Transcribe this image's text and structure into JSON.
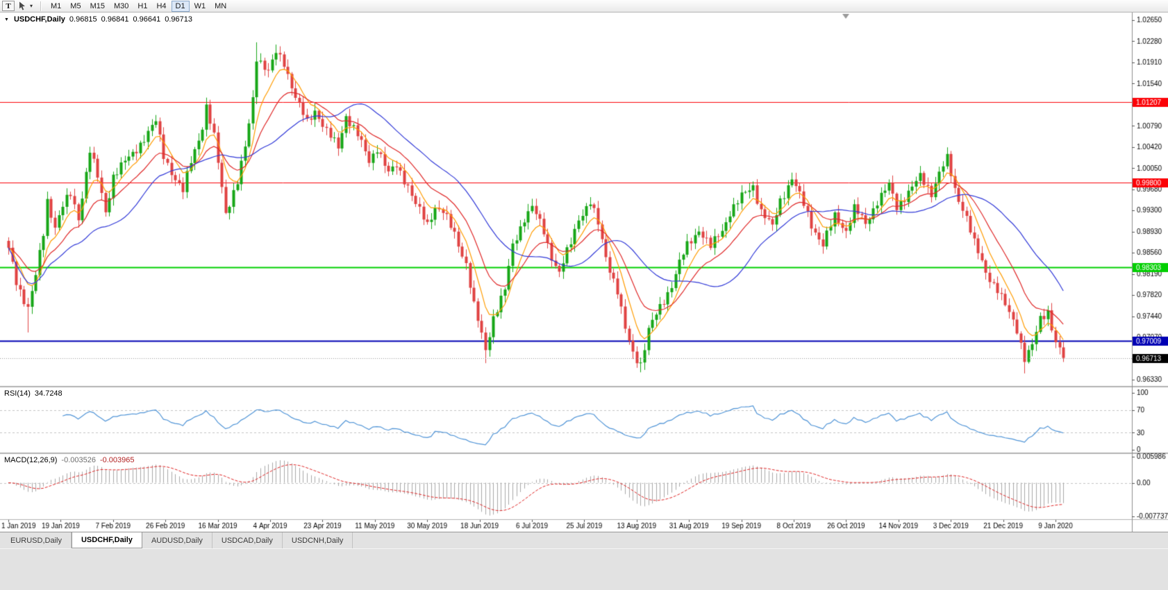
{
  "toolbar": {
    "text_tool_label": "T",
    "timeframes": [
      "M1",
      "M5",
      "M15",
      "M30",
      "H1",
      "H4",
      "D1",
      "W1",
      "MN"
    ],
    "active_timeframe": "D1"
  },
  "chart_data": {
    "type": "candlestick",
    "title_symbol": "USDCHF,Daily",
    "ohlc": {
      "open": "0.96815",
      "high": "0.96841",
      "low": "0.96641",
      "close": "0.96713"
    },
    "price_axis_labels": [
      "1.02650",
      "1.02280",
      "1.01910",
      "1.01540",
      "1.01170",
      "1.00790",
      "1.00420",
      "1.00050",
      "0.99680",
      "0.99300",
      "0.98930",
      "0.98560",
      "0.98190",
      "0.97820",
      "0.97440",
      "0.97070",
      "0.96700",
      "0.96330"
    ],
    "date_axis_labels": [
      "1 Jan 2019",
      "19 Jan 2019",
      "7 Feb 2019",
      "26 Feb 2019",
      "16 Mar 2019",
      "4 Apr 2019",
      "23 Apr 2019",
      "11 May 2019",
      "30 May 2019",
      "18 Jun 2019",
      "6 Jul 2019",
      "25 Jul 2019",
      "13 Aug 2019",
      "31 Aug 2019",
      "19 Sep 2019",
      "8 Oct 2019",
      "26 Oct 2019",
      "14 Nov 2019",
      "3 Dec 2019",
      "21 Dec 2019",
      "9 Jan 2020"
    ],
    "horizontal_levels": [
      {
        "price": 1.01207,
        "label": "1.01207",
        "color": "#fb0207",
        "line_width": 1
      },
      {
        "price": 0.998,
        "label": "0.99800",
        "color": "#fb0207",
        "line_width": 1
      },
      {
        "price": 0.98303,
        "label": "0.98303",
        "color": "#00cf00",
        "line_width": 2
      },
      {
        "price": 0.97009,
        "label": "0.97009",
        "color": "#0000b4",
        "line_width": 2
      }
    ],
    "current_price": {
      "value": 0.96713,
      "label": "0.96713",
      "tag_color": "#000000"
    },
    "candle_up_color": "#17a617",
    "candle_down_color": "#e04242",
    "moving_averages": [
      {
        "type": "ema",
        "period": 7,
        "color": "#ff9c00"
      },
      {
        "type": "ema",
        "period": 16,
        "color": "#e02828"
      },
      {
        "type": "sma",
        "period": 30,
        "color": "#3038d8"
      }
    ],
    "bars_total": 273,
    "price_anchors": [
      [
        0,
        0.9865
      ],
      [
        2,
        0.9805
      ],
      [
        5,
        0.976
      ],
      [
        7,
        0.9815
      ],
      [
        9,
        0.989
      ],
      [
        10,
        0.9948
      ],
      [
        12,
        0.9903
      ],
      [
        14,
        0.9938
      ],
      [
        16,
        0.9958
      ],
      [
        18,
        0.9918
      ],
      [
        21,
        1.0036
      ],
      [
        23,
        0.9988
      ],
      [
        25,
        0.9928
      ],
      [
        27,
        0.9992
      ],
      [
        29,
        1.0008
      ],
      [
        32,
        1.003
      ],
      [
        35,
        1.0058
      ],
      [
        38,
        1.0086
      ],
      [
        40,
        1.0028
      ],
      [
        43,
        0.9985
      ],
      [
        45,
        0.9963
      ],
      [
        47,
        1.0018
      ],
      [
        50,
        1.0078
      ],
      [
        51,
        1.0112
      ],
      [
        53,
        1.0058
      ],
      [
        55,
        0.9972
      ],
      [
        56,
        0.9928
      ],
      [
        59,
        0.998
      ],
      [
        61,
        1.004
      ],
      [
        63,
        1.0128
      ],
      [
        64,
        1.0202
      ],
      [
        67,
        1.0172
      ],
      [
        69,
        1.0208
      ],
      [
        71,
        1.0192
      ],
      [
        74,
        1.0128
      ],
      [
        77,
        1.0085
      ],
      [
        79,
        1.0108
      ],
      [
        82,
        1.0068
      ],
      [
        85,
        1.0042
      ],
      [
        87,
        1.0098
      ],
      [
        90,
        1.0062
      ],
      [
        93,
        1.0018
      ],
      [
        95,
        1.0042
      ],
      [
        98,
        0.9994
      ],
      [
        100,
        1.001
      ],
      [
        103,
        0.9974
      ],
      [
        105,
        0.994
      ],
      [
        108,
        0.9906
      ],
      [
        110,
        0.9938
      ],
      [
        112,
        0.9928
      ],
      [
        115,
        0.9888
      ],
      [
        118,
        0.9838
      ],
      [
        120,
        0.9762
      ],
      [
        123,
        0.9685
      ],
      [
        125,
        0.9744
      ],
      [
        128,
        0.979
      ],
      [
        130,
        0.9868
      ],
      [
        133,
        0.9918
      ],
      [
        135,
        0.9936
      ],
      [
        138,
        0.9894
      ],
      [
        140,
        0.985
      ],
      [
        142,
        0.982
      ],
      [
        145,
        0.9874
      ],
      [
        147,
        0.9918
      ],
      [
        150,
        0.9944
      ],
      [
        152,
        0.9906
      ],
      [
        154,
        0.985
      ],
      [
        157,
        0.9788
      ],
      [
        159,
        0.972
      ],
      [
        161,
        0.968
      ],
      [
        163,
        0.9662
      ],
      [
        165,
        0.972
      ],
      [
        168,
        0.976
      ],
      [
        171,
        0.98
      ],
      [
        173,
        0.9838
      ],
      [
        175,
        0.9868
      ],
      [
        178,
        0.9898
      ],
      [
        181,
        0.9866
      ],
      [
        184,
        0.9896
      ],
      [
        186,
        0.9928
      ],
      [
        189,
        0.9954
      ],
      [
        192,
        0.9974
      ],
      [
        194,
        0.993
      ],
      [
        197,
        0.99
      ],
      [
        199,
        0.9948
      ],
      [
        202,
        0.9988
      ],
      [
        205,
        0.994
      ],
      [
        207,
        0.9906
      ],
      [
        210,
        0.987
      ],
      [
        213,
        0.992
      ],
      [
        216,
        0.9896
      ],
      [
        218,
        0.9934
      ],
      [
        221,
        0.9906
      ],
      [
        224,
        0.9948
      ],
      [
        227,
        0.9974
      ],
      [
        229,
        0.9936
      ],
      [
        232,
        0.9964
      ],
      [
        235,
        0.9988
      ],
      [
        238,
        0.9962
      ],
      [
        240,
        0.9998
      ],
      [
        242,
        1.002
      ],
      [
        244,
        0.9966
      ],
      [
        247,
        0.992
      ],
      [
        249,
        0.9872
      ],
      [
        252,
        0.9822
      ],
      [
        255,
        0.9792
      ],
      [
        257,
        0.9762
      ],
      [
        260,
        0.9722
      ],
      [
        262,
        0.9672
      ],
      [
        264,
        0.9692
      ],
      [
        266,
        0.9738
      ],
      [
        268,
        0.9754
      ],
      [
        270,
        0.97
      ],
      [
        272,
        0.96713
      ]
    ],
    "wick_overrides": [
      {
        "bar": 5,
        "low": 0.9716
      },
      {
        "bar": 38,
        "high": 1.0098
      },
      {
        "bar": 51,
        "high": 1.0124
      },
      {
        "bar": 64,
        "high": 1.0226
      },
      {
        "bar": 69,
        "high": 1.0222
      },
      {
        "bar": 123,
        "low": 0.9662
      },
      {
        "bar": 135,
        "high": 0.9951
      },
      {
        "bar": 150,
        "high": 0.9953
      },
      {
        "bar": 163,
        "low": 0.9646
      },
      {
        "bar": 202,
        "high": 0.9997
      },
      {
        "bar": 242,
        "high": 1.0023
      },
      {
        "bar": 262,
        "low": 0.9644
      },
      {
        "bar": 268,
        "high": 0.9763
      },
      {
        "bar": 272,
        "high": 0.96841,
        "low": 0.96641
      }
    ],
    "rsi": {
      "name": "RSI(14)",
      "value": "34.7248",
      "period": 14,
      "color": "#4f94d7",
      "levels": [
        70,
        30
      ],
      "axis_labels": [
        "100",
        "70",
        "30",
        "0"
      ]
    },
    "macd": {
      "name": "MACD(12,26,9)",
      "value_main": "-0.003526",
      "value_signal": "-0.003965",
      "fast": 12,
      "slow": 26,
      "signal": 9,
      "hist_color": "#a8a8a8",
      "signal_color": "#e02020",
      "axis_labels": [
        "0.005986",
        "0.00",
        "-0.007737"
      ]
    }
  },
  "tabs": [
    {
      "label": "EURUSD,Daily",
      "active": false
    },
    {
      "label": "USDCHF,Daily",
      "active": true
    },
    {
      "label": "AUDUSD,Daily",
      "active": false
    },
    {
      "label": "USDCAD,Daily",
      "active": false
    },
    {
      "label": "USDCNH,Daily",
      "active": false
    }
  ]
}
